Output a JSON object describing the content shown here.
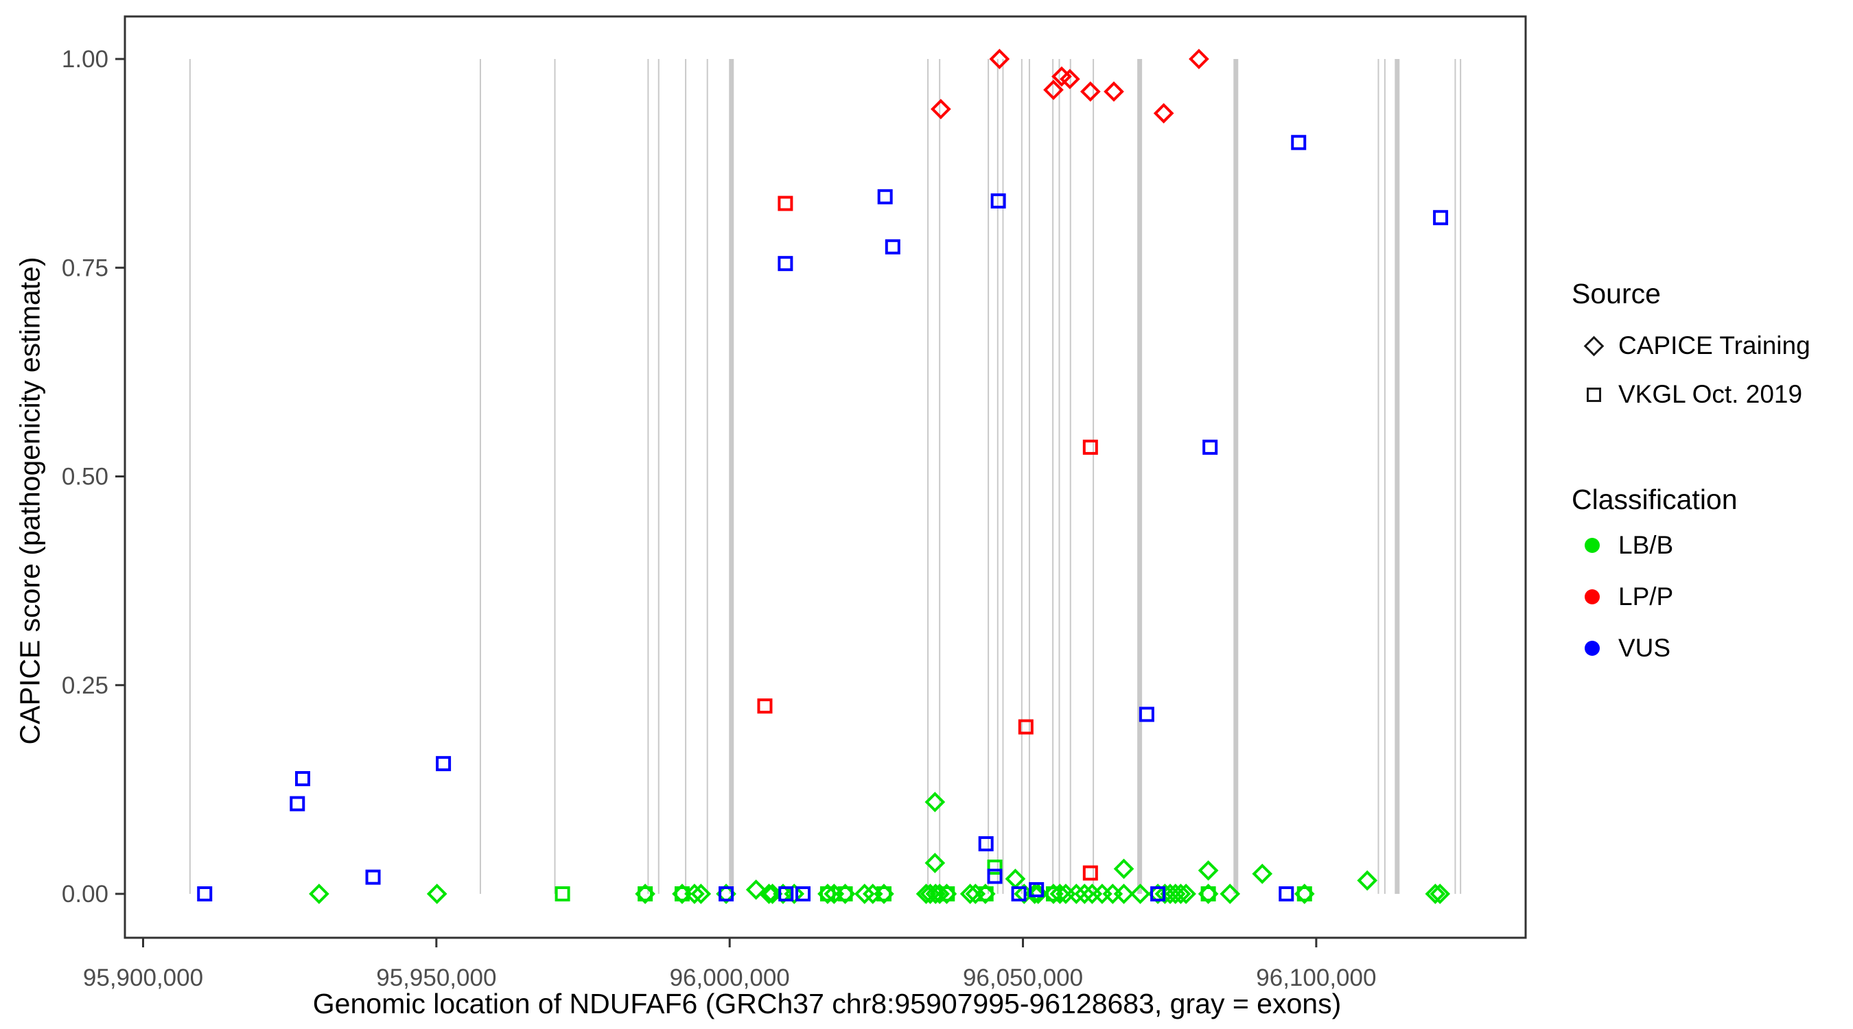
{
  "legend": {
    "source": {
      "title": "Source",
      "items": [
        {
          "label": "CAPICE Training",
          "shape": "diamond"
        },
        {
          "label": "VKGL Oct. 2019",
          "shape": "square"
        }
      ]
    },
    "classification": {
      "title": "Classification",
      "items": [
        {
          "label": "LB/B",
          "color": "#00E400"
        },
        {
          "label": "LP/P",
          "color": "#FF0000"
        },
        {
          "label": "VUS",
          "color": "#0000FF"
        }
      ]
    }
  },
  "chart_data": {
    "type": "scatter",
    "title": "",
    "xlabel": "Genomic location of NDUFAF6 (GRCh37 chr8:95907995-96128683, gray = exons)",
    "ylabel": "CAPICE score (pathogenicity estimate)",
    "x_range": [
      95896900,
      96135700
    ],
    "y_range": [
      -0.053,
      1.051
    ],
    "x_tick_values": [
      95900000,
      95950000,
      96000000,
      96050000,
      96100000
    ],
    "x_tick_labels": [
      "95,900,000",
      "95,950,000",
      "96,000,000",
      "96,050,000",
      "96,100,000"
    ],
    "y_tick_values": [
      0.0,
      0.25,
      0.5,
      0.75,
      1.0
    ],
    "y_tick_labels": [
      "0.00",
      "0.25",
      "0.50",
      "0.75",
      "1.00"
    ],
    "grid": false,
    "legend_position": "right",
    "exon_note": "gray vertical lines mark exons",
    "exons": [
      {
        "pos": 95907995,
        "thick": false
      },
      {
        "pos": 95957500,
        "thick": false
      },
      {
        "pos": 95970200,
        "thick": false
      },
      {
        "pos": 95986100,
        "thick": false
      },
      {
        "pos": 95987900,
        "thick": false
      },
      {
        "pos": 95992500,
        "thick": false
      },
      {
        "pos": 95996200,
        "thick": false
      },
      {
        "pos": 96000300,
        "thick": true
      },
      {
        "pos": 96033800,
        "thick": false
      },
      {
        "pos": 96035800,
        "thick": false
      },
      {
        "pos": 96044100,
        "thick": false
      },
      {
        "pos": 96045700,
        "thick": false
      },
      {
        "pos": 96046600,
        "thick": false
      },
      {
        "pos": 96049800,
        "thick": false
      },
      {
        "pos": 96051100,
        "thick": false
      },
      {
        "pos": 96055100,
        "thick": false
      },
      {
        "pos": 96056200,
        "thick": false
      },
      {
        "pos": 96058100,
        "thick": false
      },
      {
        "pos": 96062000,
        "thick": false
      },
      {
        "pos": 96069900,
        "thick": true
      },
      {
        "pos": 96086300,
        "thick": true
      },
      {
        "pos": 96110600,
        "thick": false
      },
      {
        "pos": 96111700,
        "thick": false
      },
      {
        "pos": 96113800,
        "thick": true
      },
      {
        "pos": 96123700,
        "thick": false
      },
      {
        "pos": 96124600,
        "thick": false
      }
    ],
    "series": [
      {
        "name": "CAPICE Training LB/B",
        "source": "CAPICE Training",
        "classification": "LB/B",
        "shape": "diamond",
        "color": "#00E400",
        "points": [
          [
            95930000,
            0.0
          ],
          [
            95950100,
            0.0
          ],
          [
            95985600,
            0.0
          ],
          [
            95991900,
            0.0
          ],
          [
            95994000,
            0.0
          ],
          [
            95995100,
            0.0
          ],
          [
            95999400,
            0.0
          ],
          [
            96004500,
            0.005
          ],
          [
            96006700,
            0.0
          ],
          [
            96007300,
            0.0
          ],
          [
            96009100,
            0.0
          ],
          [
            96011000,
            0.0
          ],
          [
            96016700,
            0.0
          ],
          [
            96017800,
            0.0
          ],
          [
            96019700,
            0.0
          ],
          [
            96023000,
            0.0
          ],
          [
            96024400,
            0.0
          ],
          [
            96026300,
            0.0
          ],
          [
            96033500,
            0.0
          ],
          [
            96034200,
            0.0
          ],
          [
            96035000,
            0.11
          ],
          [
            96035000,
            0.037
          ],
          [
            96035100,
            0.0
          ],
          [
            96035800,
            0.0
          ],
          [
            96037000,
            0.0
          ],
          [
            96041000,
            0.0
          ],
          [
            96041900,
            0.0
          ],
          [
            96043600,
            0.0
          ],
          [
            96048700,
            0.018
          ],
          [
            96050200,
            0.0
          ],
          [
            96052000,
            0.0
          ],
          [
            96052600,
            0.0
          ],
          [
            96055200,
            0.0
          ],
          [
            96056300,
            0.0
          ],
          [
            96057300,
            0.0
          ],
          [
            96059100,
            0.0
          ],
          [
            96060500,
            0.0
          ],
          [
            96061800,
            0.0
          ],
          [
            96063500,
            0.0
          ],
          [
            96065300,
            0.0
          ],
          [
            96067200,
            0.03
          ],
          [
            96067200,
            0.0
          ],
          [
            96070000,
            0.0
          ],
          [
            96073000,
            0.0
          ],
          [
            96074200,
            0.0
          ],
          [
            96075100,
            0.0
          ],
          [
            96076000,
            0.0
          ],
          [
            96076900,
            0.0
          ],
          [
            96077800,
            0.0
          ],
          [
            96081600,
            0.028
          ],
          [
            96081600,
            0.0
          ],
          [
            96085300,
            0.0
          ],
          [
            96090800,
            0.024
          ],
          [
            96098000,
            0.0
          ],
          [
            96108700,
            0.016
          ],
          [
            96120300,
            0.0
          ],
          [
            96121100,
            0.0
          ]
        ]
      },
      {
        "name": "CAPICE Training LP/P",
        "source": "CAPICE Training",
        "classification": "LP/P",
        "shape": "diamond",
        "color": "#FF0000",
        "points": [
          [
            96036000,
            0.94
          ],
          [
            96046000,
            1.0
          ],
          [
            96055200,
            0.963
          ],
          [
            96056600,
            0.979
          ],
          [
            96058000,
            0.976
          ],
          [
            96061500,
            0.961
          ],
          [
            96065500,
            0.961
          ],
          [
            96074000,
            0.935
          ],
          [
            96080000,
            1.0
          ]
        ]
      },
      {
        "name": "VKGL LB/B",
        "source": "VKGL Oct. 2019",
        "classification": "LB/B",
        "shape": "square",
        "color": "#00E400",
        "points": [
          [
            95971500,
            0.0
          ],
          [
            95985600,
            0.0
          ],
          [
            95991900,
            0.0
          ],
          [
            96016700,
            0.0
          ],
          [
            96019700,
            0.0
          ],
          [
            96026300,
            0.0
          ],
          [
            96037100,
            0.0
          ],
          [
            96043700,
            0.0
          ],
          [
            96045200,
            0.032
          ],
          [
            96055200,
            0.0
          ],
          [
            96081600,
            0.0
          ],
          [
            96098000,
            0.0
          ]
        ]
      },
      {
        "name": "VKGL LP/P",
        "source": "VKGL Oct. 2019",
        "classification": "LP/P",
        "shape": "square",
        "color": "#FF0000",
        "points": [
          [
            96006000,
            0.225
          ],
          [
            96009500,
            0.827
          ],
          [
            96050500,
            0.2
          ],
          [
            96061500,
            0.535
          ],
          [
            96061500,
            0.025
          ]
        ]
      },
      {
        "name": "VKGL VUS",
        "source": "VKGL Oct. 2019",
        "classification": "VUS",
        "shape": "square",
        "color": "#0000FF",
        "points": [
          [
            95910500,
            0.0
          ],
          [
            95926300,
            0.108
          ],
          [
            95927200,
            0.138
          ],
          [
            95939200,
            0.02
          ],
          [
            95951200,
            0.156
          ],
          [
            95999400,
            0.0
          ],
          [
            96009500,
            0.755
          ],
          [
            96009600,
            0.0
          ],
          [
            96012500,
            0.0
          ],
          [
            96026500,
            0.835
          ],
          [
            96027800,
            0.775
          ],
          [
            96043700,
            0.06
          ],
          [
            96045200,
            0.021
          ],
          [
            96045800,
            0.83
          ],
          [
            96049300,
            0.0
          ],
          [
            96052300,
            0.005
          ],
          [
            96071100,
            0.215
          ],
          [
            96073000,
            0.0
          ],
          [
            96081900,
            0.535
          ],
          [
            96094900,
            0.0
          ],
          [
            96097000,
            0.9
          ],
          [
            96121200,
            0.81
          ]
        ]
      }
    ]
  }
}
